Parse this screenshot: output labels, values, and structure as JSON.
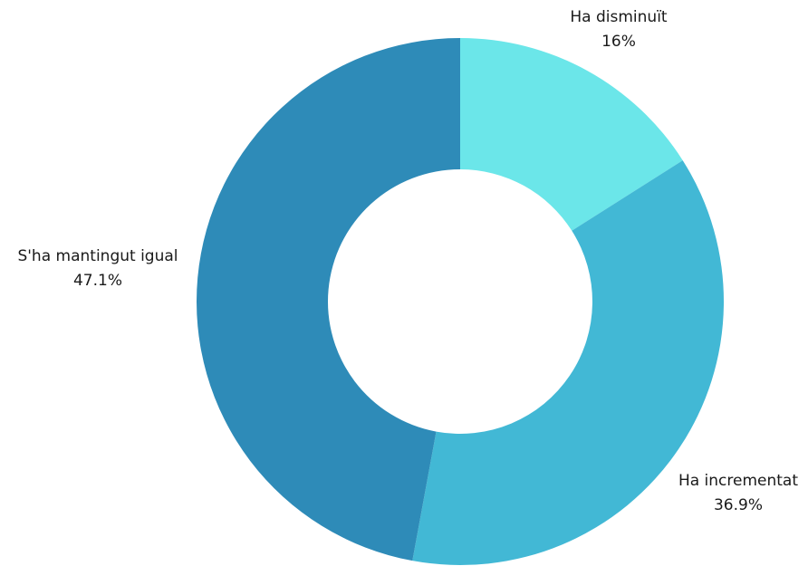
{
  "chart_data": {
    "type": "pie",
    "variant": "donut",
    "slices": [
      {
        "label": "Ha disminuït",
        "value": 16,
        "value_label": "16%",
        "color": "#6BE6E9"
      },
      {
        "label": "Ha incrementat",
        "value": 36.9,
        "value_label": "36.9%",
        "color": "#42B8D5"
      },
      {
        "label": "S'ha mantingut igual",
        "value": 47.1,
        "value_label": "47.1%",
        "color": "#2E8BB8"
      }
    ]
  }
}
